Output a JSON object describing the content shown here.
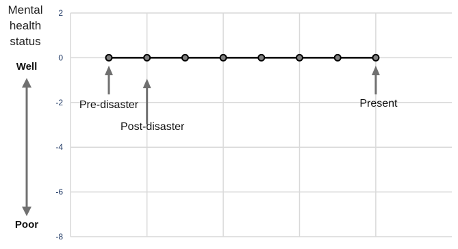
{
  "chart_data": {
    "type": "line",
    "ylabel_lines": [
      "Mental",
      "health",
      "status"
    ],
    "scale_top": "Well",
    "scale_bottom": "Poor",
    "ylim": [
      -8,
      2
    ],
    "yticks": [
      2,
      0,
      -2,
      -4,
      -6,
      -8
    ],
    "grid": true,
    "x": [
      1,
      2,
      3,
      4,
      5,
      6,
      7,
      8
    ],
    "series": [
      {
        "values": [
          0,
          0,
          0,
          0,
          0,
          0,
          0,
          0
        ]
      }
    ],
    "annotations": [
      {
        "text": "Pre-disaster",
        "x": 1
      },
      {
        "text": "Post-disaster",
        "x": 2
      },
      {
        "text": "Present",
        "x": 8
      }
    ],
    "colors": {
      "line": "#000000",
      "marker": "#808080",
      "arrow": "#707070",
      "grid": "#d9d9d9"
    }
  }
}
